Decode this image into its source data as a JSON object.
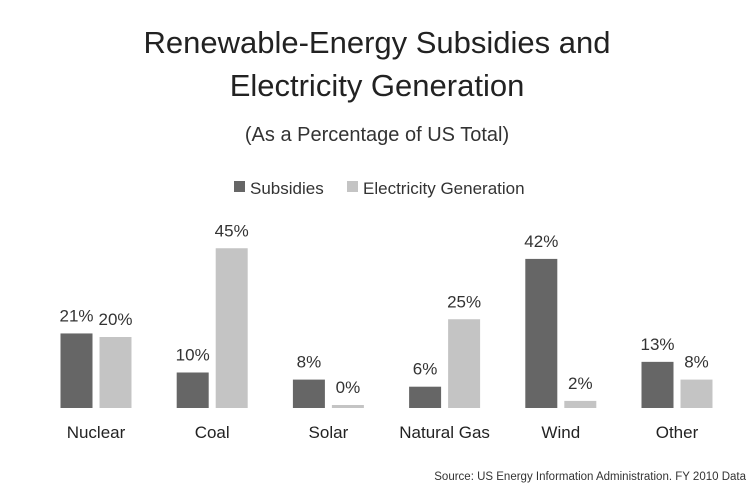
{
  "chart_data": {
    "type": "bar",
    "title_lines": [
      "Renewable-Energy Subsidies and",
      "Electricity Generation"
    ],
    "subtitle": "(As a Percentage of US Total)",
    "categories": [
      "Nuclear",
      "Coal",
      "Solar",
      "Natural Gas",
      "Wind",
      "Other"
    ],
    "series": [
      {
        "name": "Subsidies",
        "color": "#666666",
        "values": [
          21,
          10,
          8,
          6,
          42,
          13
        ],
        "labels": [
          "21%",
          "10%",
          "8%",
          "6%",
          "42%",
          "13%"
        ]
      },
      {
        "name": "Electricity Generation",
        "color": "#c4c4c4",
        "values": [
          20,
          45,
          0,
          25,
          2,
          8
        ],
        "labels": [
          "20%",
          "45%",
          "0%",
          "25%",
          "2%",
          "8%"
        ]
      }
    ],
    "ylim": [
      0,
      45
    ],
    "grid": false,
    "legend_position": "top-center",
    "source": "Source: US Energy Information Administration. FY 2010 Data"
  }
}
